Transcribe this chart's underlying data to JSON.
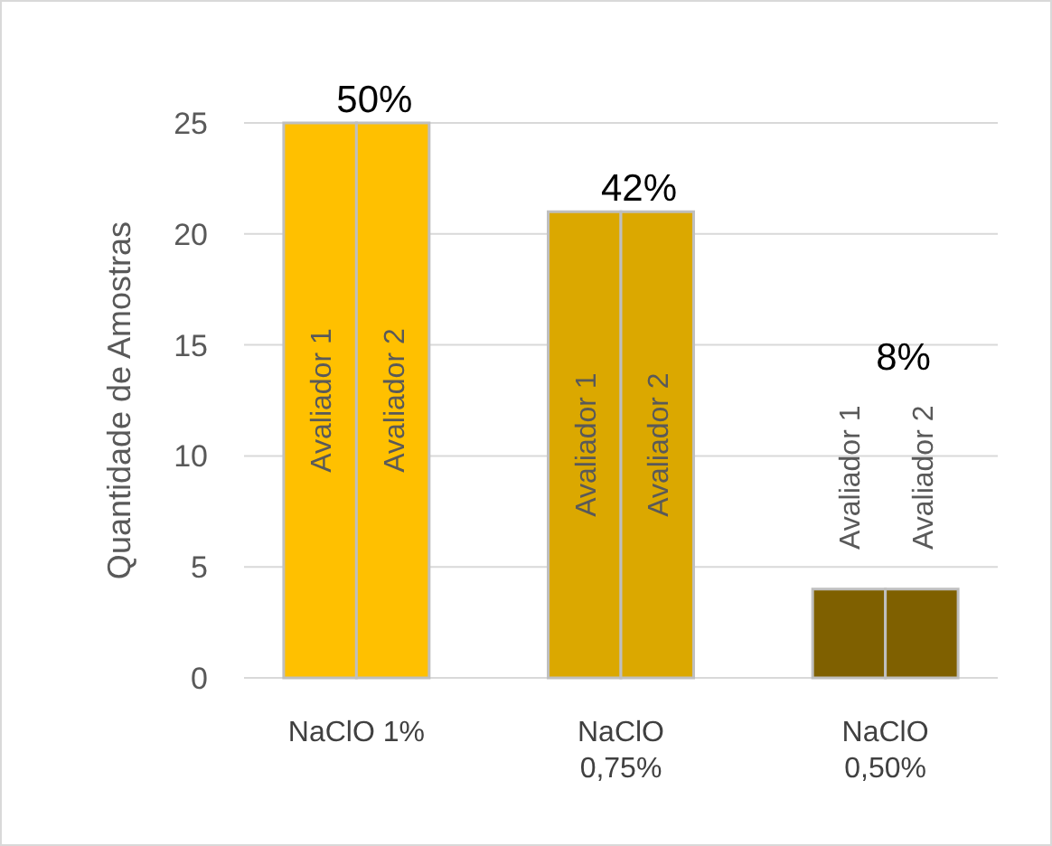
{
  "chart_data": {
    "type": "bar",
    "ylabel": "Quantidade de Amostras",
    "categories": [
      "NaClO 1%",
      "NaClO 0,75%",
      "NaClO 0,50%"
    ],
    "series": [
      {
        "name": "Avaliador 1",
        "colors": [
          "#ffc000",
          "#dba800",
          "#7f6000"
        ],
        "values": [
          25,
          21,
          4
        ]
      },
      {
        "name": "Avaliador 2",
        "colors": [
          "#ffc000",
          "#dba800",
          "#7f6000"
        ],
        "values": [
          25,
          21,
          4
        ]
      }
    ],
    "ylim": [
      0,
      25
    ],
    "yticks": [
      0,
      5,
      10,
      15,
      20,
      25
    ],
    "grid": "y",
    "annotations": [
      "50%",
      "42%",
      "8%"
    ]
  }
}
